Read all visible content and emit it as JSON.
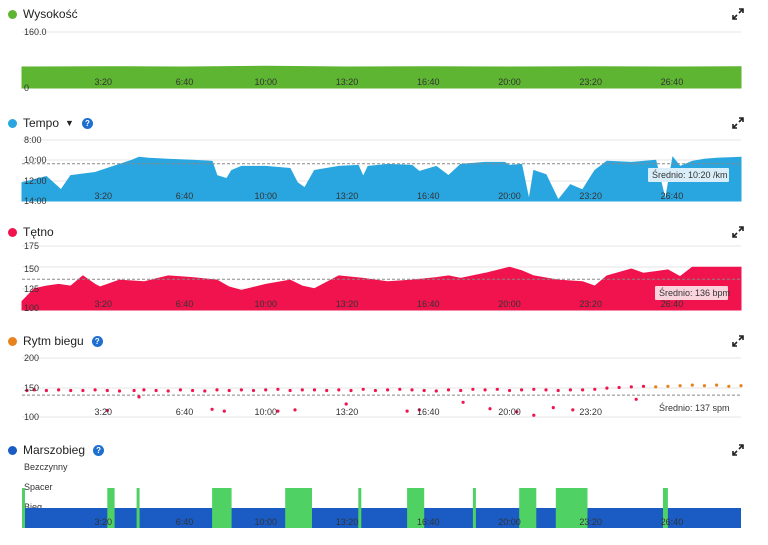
{
  "panels": {
    "wysokosc": {
      "title": "Wysokość",
      "color": "#5db531",
      "y_labels": [
        "160.0",
        "0"
      ]
    },
    "tempo": {
      "title": "Tempo",
      "color": "#29a6e0",
      "y_labels": [
        "8:00",
        "10:00",
        "12:00",
        "14:00"
      ],
      "average": "Średnio: 10:20 /km"
    },
    "tetno": {
      "title": "Tętno",
      "color": "#f0134d",
      "y_labels": [
        "175",
        "150",
        "125",
        "100"
      ],
      "average": "Średnio: 136 bpm"
    },
    "rytm": {
      "title": "Rytm biegu",
      "color": "#e8821e",
      "y_labels": [
        "200",
        "150",
        "100"
      ],
      "average": "Średnio: 137 spm"
    },
    "marszobieg": {
      "title": "Marszobieg",
      "color": "#1a5cc4",
      "y_labels": [
        "Bezczynny",
        "Spacer",
        "Bieg"
      ]
    }
  },
  "x_ticks": [
    "3:20",
    "6:40",
    "10:00",
    "13:20",
    "16:40",
    "20:00",
    "23:20",
    "26:40"
  ],
  "icons": {
    "expand": "expand-icon",
    "help": "help-icon",
    "caret": "caret-down-icon"
  },
  "chart_data": [
    {
      "type": "area",
      "title": "Wysokość",
      "x_unit": "minutes",
      "x": [
        0,
        3.33,
        6.67,
        10,
        13.33,
        16.67,
        20,
        23.33,
        26.67,
        29.5
      ],
      "values": [
        60,
        61,
        60,
        62,
        60,
        61,
        60,
        61,
        60,
        61
      ],
      "ylim": [
        0,
        160
      ]
    },
    {
      "type": "area",
      "title": "Tempo",
      "x_unit": "minutes",
      "y_unit": "min/km",
      "x": [
        0,
        1,
        1.6,
        2,
        3,
        4.5,
        4.8,
        5.2,
        6,
        7,
        7.8,
        8,
        8.4,
        8.6,
        9,
        10,
        11,
        11.3,
        11.6,
        12,
        13,
        13.8,
        14,
        14.2,
        15,
        16,
        16.3,
        17,
        17.5,
        18,
        19,
        19.8,
        20,
        20.5,
        20.8,
        21,
        21.5,
        22,
        22.5,
        23,
        23.5,
        24,
        25,
        26,
        26.4,
        26.7,
        27,
        27.5,
        28,
        28.5,
        29.5
      ],
      "values": [
        12.2,
        11.6,
        12.9,
        11.5,
        11.2,
        10.0,
        9.7,
        9.8,
        9.9,
        10.0,
        10.1,
        11.5,
        11.8,
        11.0,
        10.6,
        10.6,
        10.8,
        12.2,
        12.7,
        11.0,
        10.6,
        10.5,
        11.6,
        10.6,
        10.4,
        10.5,
        11.1,
        10.6,
        11.5,
        10.4,
        10.2,
        10.2,
        10.5,
        10.4,
        13.9,
        11.0,
        11.4,
        13.9,
        12.4,
        12.9,
        11.0,
        10.1,
        10.2,
        10.0,
        13.9,
        9.7,
        10.6,
        10.1,
        9.9,
        9.8,
        9.7
      ],
      "ylim": [
        8,
        14
      ],
      "inverted": true,
      "average": "10:20 /km"
    },
    {
      "type": "area",
      "title": "Tętno",
      "x_unit": "minutes",
      "y_unit": "bpm",
      "x": [
        0,
        0.5,
        1,
        1.5,
        2,
        2.5,
        3,
        3.2,
        4,
        5,
        6,
        7,
        8,
        8.5,
        9,
        10,
        11,
        11.5,
        12,
        13,
        14,
        15,
        16,
        17,
        17.5,
        18,
        19,
        20,
        20.5,
        21,
        22,
        23,
        23.5,
        24,
        25,
        25.5,
        26,
        26.5,
        27,
        27.5,
        28,
        29,
        29.5
      ],
      "values": [
        110,
        125,
        128,
        130,
        128,
        140,
        130,
        127,
        135,
        133,
        140,
        138,
        135,
        127,
        123,
        130,
        135,
        128,
        125,
        140,
        137,
        133,
        135,
        138,
        140,
        137,
        143,
        150,
        146,
        140,
        135,
        133,
        128,
        140,
        148,
        143,
        145,
        147,
        139,
        150,
        150,
        150,
        150
      ],
      "ylim": [
        100,
        175
      ],
      "average": "136 bpm"
    },
    {
      "type": "scatter",
      "title": "Rytm biegu",
      "x_unit": "minutes",
      "y_unit": "spm",
      "x": [
        0.2,
        0.5,
        1,
        1.5,
        2,
        2.5,
        3.0,
        3.5,
        4,
        4.6,
        5,
        5.5,
        6,
        6.5,
        7,
        7.5,
        8,
        8.5,
        9,
        9.5,
        10,
        10.5,
        11,
        11.5,
        12,
        12.5,
        13,
        13.5,
        14,
        14.5,
        15,
        15.5,
        16,
        16.5,
        17,
        17.5,
        18,
        18.5,
        19,
        19.5,
        20,
        20.5,
        21,
        21.5,
        22,
        22.5,
        23,
        23.5,
        24,
        24.5,
        25,
        25.5,
        26,
        26.5,
        27,
        27.5,
        28,
        28.5,
        29,
        29.5,
        3.5,
        7.8,
        8.3,
        10.5,
        11.2,
        15.8,
        16.3,
        19.2,
        20.3,
        21.0,
        21.8,
        22.6,
        4.8,
        13.3,
        18.1,
        25.2
      ],
      "values": [
        145,
        146,
        145,
        146,
        145,
        145,
        146,
        145,
        144,
        145,
        146,
        145,
        144,
        146,
        145,
        144,
        146,
        145,
        146,
        145,
        146,
        147,
        145,
        146,
        146,
        145,
        146,
        145,
        147,
        145,
        146,
        147,
        146,
        145,
        144,
        146,
        145,
        147,
        146,
        147,
        145,
        146,
        147,
        146,
        145,
        146,
        146,
        147,
        149,
        150,
        151,
        152,
        151,
        152,
        153,
        154,
        153,
        154,
        152,
        153,
        111,
        113,
        110,
        110,
        112,
        110,
        112,
        114,
        109,
        103,
        116,
        112,
        134,
        122,
        125,
        130
      ],
      "ylim": [
        100,
        200
      ],
      "average": "137 spm"
    },
    {
      "type": "bar",
      "title": "Marszobieg",
      "categories": [
        "Bieg",
        "Spacer",
        "Bezczynny"
      ],
      "segments": [
        {
          "start": 0,
          "end": 0.1,
          "state": "Spacer"
        },
        {
          "start": 3.5,
          "end": 3.8,
          "state": "Spacer"
        },
        {
          "start": 4.7,
          "end": 4.8,
          "state": "Spacer"
        },
        {
          "start": 7.8,
          "end": 8.6,
          "state": "Spacer"
        },
        {
          "start": 10.8,
          "end": 11.9,
          "state": "Spacer"
        },
        {
          "start": 13.8,
          "end": 13.9,
          "state": "Spacer"
        },
        {
          "start": 15.8,
          "end": 16.5,
          "state": "Spacer"
        },
        {
          "start": 18.5,
          "end": 18.6,
          "state": "Spacer"
        },
        {
          "start": 20.4,
          "end": 21.1,
          "state": "Spacer"
        },
        {
          "start": 21.9,
          "end": 23.2,
          "state": "Spacer"
        },
        {
          "start": 26.3,
          "end": 26.5,
          "state": "Spacer"
        }
      ]
    }
  ]
}
